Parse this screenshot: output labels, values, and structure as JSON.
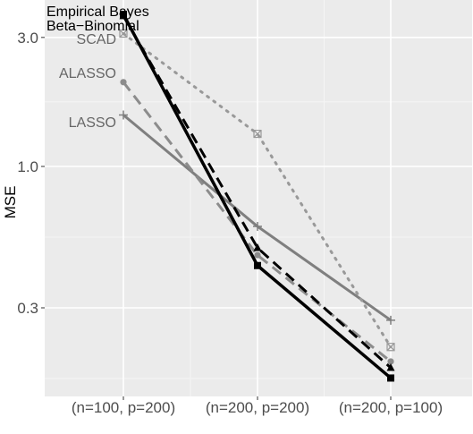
{
  "chart_data": {
    "type": "line",
    "ylabel": "MSE",
    "xlabel": "",
    "y_scale": "log",
    "categories": [
      "(n=100, p=200)",
      "(n=200, p=200)",
      "(n=200, p=100)"
    ],
    "yticks": [
      {
        "value": 0.3,
        "label": "0.3"
      },
      {
        "value": 1.0,
        "label": "1.0"
      },
      {
        "value": 3.0,
        "label": "3.0"
      }
    ],
    "ylim": [
      0.14,
      4.2
    ],
    "grid": true,
    "legend": "inline labels next to each series at the first category",
    "series": [
      {
        "name": "LASSO",
        "values": [
          1.55,
          0.6,
          0.27
        ],
        "color": "#7f7f7f",
        "dash": "solid",
        "marker": "plus",
        "stroke_width": 3
      },
      {
        "name": "ALASSO",
        "values": [
          2.05,
          0.47,
          0.19
        ],
        "color": "#8c8c8c",
        "dash": "dashed",
        "marker": "circle",
        "stroke_width": 3
      },
      {
        "name": "SCAD",
        "values": [
          3.1,
          1.32,
          0.215
        ],
        "color": "#999999",
        "dash": "dotted",
        "marker": "boxx",
        "stroke_width": 3
      },
      {
        "name": "Beta−Binomial",
        "values": [
          3.6,
          0.5,
          0.18
        ],
        "color": "#000000",
        "dash": "dashed",
        "marker": "triangle",
        "stroke_width": 3
      },
      {
        "name": "Empirical Bayes",
        "values": [
          3.65,
          0.43,
          0.165
        ],
        "color": "#000000",
        "dash": "solid",
        "marker": "square",
        "stroke_width": 3.5
      }
    ]
  }
}
